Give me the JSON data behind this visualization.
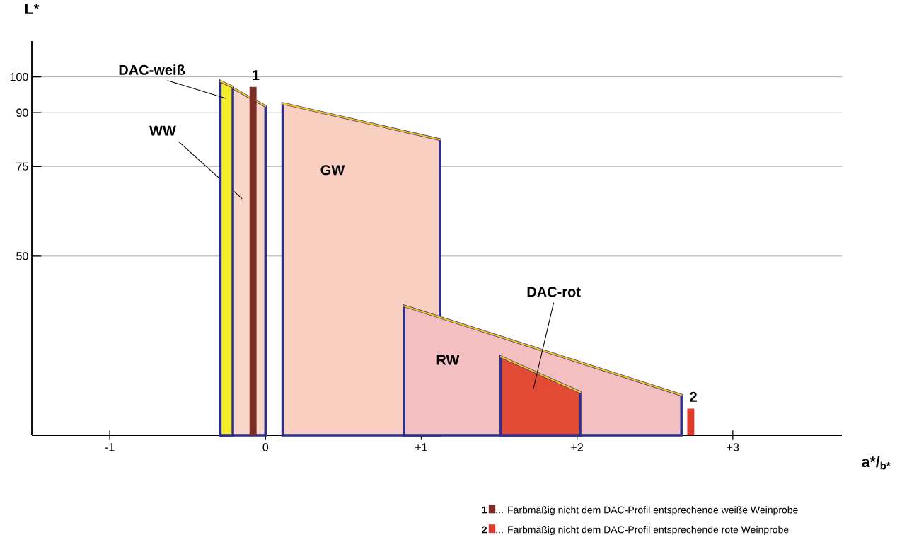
{
  "chart_data": {
    "type": "area",
    "xlabel": "a*/$_{b*}$",
    "ylabel": "L*",
    "xlim": [
      -1.5,
      3.7
    ],
    "ylim": [
      0,
      110
    ],
    "xticks": [
      -1,
      0,
      {
        "value": 1,
        "label": "+1"
      },
      {
        "value": 2,
        "label": "+2"
      },
      {
        "value": 3,
        "label": "+3"
      }
    ],
    "yticks": [
      50,
      75,
      90,
      100
    ],
    "grid": "y",
    "legend": "bottom right",
    "series": [
      {
        "name": "GW",
        "color": "#f8cfc0",
        "x": [
          0.11,
          1.12
        ],
        "values": [
          92.6,
          82.5
        ]
      },
      {
        "name": "RW",
        "color": "#f4bfc0",
        "x": [
          0.89,
          2.67
        ],
        "values": [
          36.1,
          11.2
        ]
      },
      {
        "name": "WW",
        "color": "#f8d6c8",
        "x": [
          -0.29,
          0.0
        ],
        "values": [
          98.8,
          91.8
        ]
      },
      {
        "name": "DAC-weiß",
        "color": "#f5ec2a",
        "x": [
          -0.29,
          -0.21
        ],
        "values": [
          98.8,
          97.2
        ]
      },
      {
        "name": "DAC-rot",
        "color": "#e34a33",
        "x": [
          1.51,
          2.02
        ],
        "values": [
          21.9,
          12.0
        ]
      },
      {
        "name": "1",
        "type": "bar",
        "color": "#7b2d26",
        "x": [
          -0.08
        ],
        "values": [
          97.2
        ]
      },
      {
        "name": "2",
        "type": "bar",
        "color": "#e03a2e",
        "x": [
          2.73
        ],
        "values": [
          7.4
        ]
      }
    ],
    "annotations": [
      "... Farbmäßig nicht dem DAC-Profil entsprechende weiße Weinprobe",
      "... Farbmäßig nicht dem DAC-Profil entsprechende rote Weinprobe"
    ]
  }
}
